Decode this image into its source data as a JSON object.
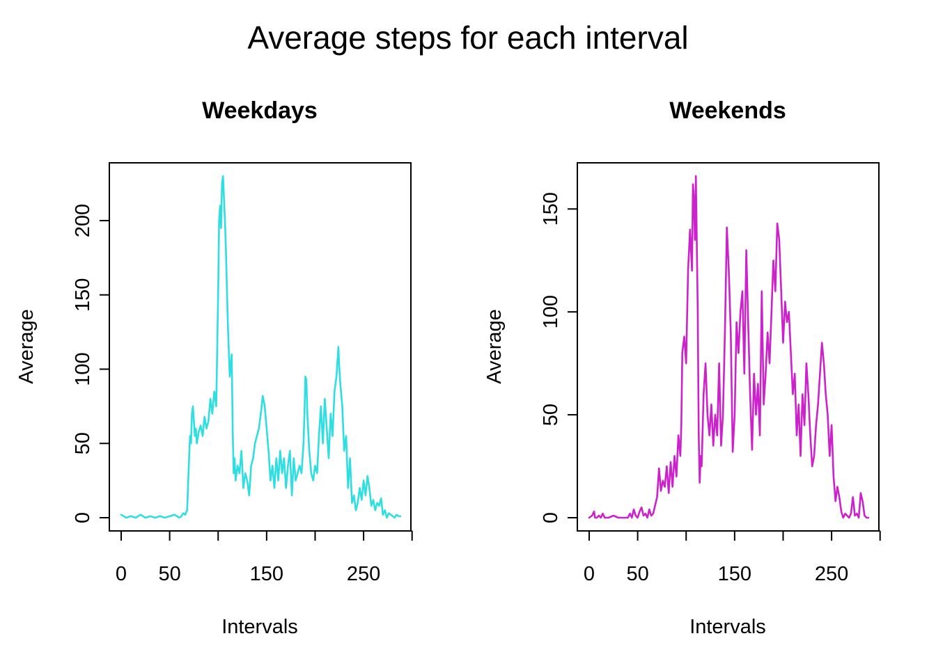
{
  "title": "Average steps for each interval",
  "chart_data": [
    {
      "type": "line",
      "title": "Weekdays",
      "xlabel": "Intervals",
      "ylabel": "Average",
      "color": "#2EDEE0",
      "xlim": [
        0,
        288
      ],
      "ylim": [
        0,
        230
      ],
      "xticks": [
        0,
        50,
        100,
        150,
        200,
        250,
        300
      ],
      "xtick_labels": [
        "0",
        "50",
        "",
        "150",
        "",
        "250",
        ""
      ],
      "yticks": [
        0,
        50,
        100,
        150,
        200
      ],
      "ytick_labels": [
        "0",
        "50",
        "100",
        "150",
        "200"
      ],
      "series": [
        {
          "x": [
            0,
            5,
            10,
            15,
            20,
            25,
            30,
            35,
            40,
            45,
            50,
            55,
            60,
            62,
            64,
            66,
            68,
            70,
            71,
            72,
            73,
            74,
            75,
            76,
            77,
            78,
            80,
            82,
            84,
            86,
            88,
            90,
            92,
            94,
            96,
            98,
            100,
            101,
            102,
            103,
            104,
            105,
            106,
            107,
            108,
            110,
            112,
            114,
            115,
            116,
            117,
            118,
            120,
            122,
            124,
            126,
            128,
            130,
            132,
            134,
            136,
            138,
            140,
            142,
            144,
            146,
            148,
            150,
            152,
            154,
            156,
            158,
            160,
            162,
            164,
            166,
            168,
            170,
            172,
            174,
            176,
            178,
            180,
            182,
            184,
            186,
            188,
            189,
            190,
            191,
            192,
            194,
            196,
            198,
            200,
            202,
            204,
            206,
            208,
            210,
            212,
            214,
            216,
            218,
            220,
            222,
            223,
            224,
            225,
            226,
            228,
            230,
            232,
            234,
            236,
            238,
            240,
            242,
            244,
            246,
            248,
            250,
            252,
            254,
            256,
            258,
            260,
            262,
            264,
            266,
            268,
            270,
            272,
            274,
            276,
            278,
            280,
            282,
            284,
            286,
            288
          ],
          "y": [
            2,
            0,
            1,
            0,
            2,
            0,
            1,
            0,
            1,
            0,
            1,
            2,
            0,
            1,
            3,
            2,
            5,
            40,
            55,
            50,
            70,
            75,
            65,
            55,
            60,
            50,
            58,
            62,
            55,
            68,
            60,
            65,
            80,
            70,
            85,
            75,
            150,
            200,
            210,
            195,
            225,
            230,
            215,
            200,
            180,
            130,
            95,
            110,
            60,
            30,
            40,
            25,
            35,
            30,
            45,
            20,
            30,
            25,
            15,
            35,
            40,
            50,
            55,
            60,
            70,
            82,
            75,
            60,
            45,
            25,
            35,
            20,
            40,
            25,
            45,
            30,
            40,
            20,
            35,
            45,
            15,
            40,
            25,
            30,
            35,
            30,
            50,
            70,
            95,
            93,
            70,
            45,
            30,
            25,
            35,
            30,
            55,
            75,
            50,
            80,
            60,
            40,
            70,
            55,
            85,
            95,
            105,
            115,
            100,
            90,
            75,
            45,
            55,
            20,
            40,
            10,
            15,
            5,
            10,
            20,
            12,
            25,
            15,
            28,
            20,
            8,
            12,
            5,
            10,
            8,
            13,
            2,
            5,
            0,
            3,
            2,
            1,
            0,
            2,
            1,
            1
          ]
        }
      ]
    },
    {
      "type": "line",
      "title": "Weekends",
      "xlabel": "Intervals",
      "ylabel": "Average",
      "color": "#CC22CC",
      "xlim": [
        0,
        288
      ],
      "ylim": [
        0,
        166
      ],
      "xticks": [
        0,
        50,
        100,
        150,
        200,
        250,
        300
      ],
      "xtick_labels": [
        "0",
        "50",
        "",
        "150",
        "",
        "250",
        ""
      ],
      "yticks": [
        0,
        50,
        100,
        150
      ],
      "ytick_labels": [
        "0",
        "50",
        "100",
        "150"
      ],
      "series": [
        {
          "x": [
            0,
            3,
            5,
            6,
            8,
            10,
            12,
            14,
            16,
            20,
            25,
            30,
            35,
            40,
            42,
            44,
            46,
            48,
            50,
            52,
            54,
            56,
            58,
            60,
            62,
            64,
            66,
            68,
            70,
            72,
            74,
            76,
            78,
            80,
            82,
            84,
            86,
            88,
            90,
            92,
            94,
            95,
            96,
            98,
            100,
            102,
            104,
            106,
            107,
            108,
            109,
            110,
            112,
            113,
            114,
            115,
            116,
            118,
            120,
            122,
            124,
            126,
            128,
            130,
            132,
            134,
            136,
            138,
            140,
            142,
            144,
            146,
            148,
            150,
            152,
            154,
            156,
            158,
            160,
            162,
            164,
            166,
            168,
            170,
            172,
            174,
            176,
            178,
            180,
            182,
            184,
            186,
            188,
            190,
            192,
            194,
            196,
            198,
            200,
            202,
            204,
            206,
            208,
            210,
            212,
            214,
            216,
            218,
            220,
            222,
            224,
            226,
            228,
            230,
            232,
            234,
            236,
            238,
            240,
            242,
            244,
            246,
            248,
            250,
            252,
            254,
            256,
            258,
            260,
            262,
            264,
            266,
            268,
            270,
            272,
            274,
            276,
            278,
            280,
            282,
            284,
            286,
            288
          ],
          "y": [
            0,
            1,
            3,
            0,
            0,
            1,
            0,
            2,
            0,
            0,
            1,
            0,
            0,
            0,
            2,
            0,
            4,
            1,
            0,
            3,
            5,
            1,
            2,
            0,
            4,
            1,
            2,
            6,
            10,
            24,
            13,
            18,
            15,
            25,
            12,
            27,
            15,
            30,
            20,
            40,
            30,
            45,
            80,
            88,
            75,
            120,
            140,
            120,
            162,
            155,
            135,
            166,
            100,
            40,
            17,
            30,
            25,
            60,
            75,
            50,
            40,
            55,
            35,
            50,
            40,
            75,
            35,
            50,
            90,
            141,
            120,
            90,
            32,
            50,
            95,
            80,
            100,
            110,
            70,
            130,
            95,
            60,
            33,
            70,
            50,
            65,
            40,
            110,
            55,
            70,
            90,
            75,
            100,
            125,
            110,
            143,
            135,
            110,
            85,
            105,
            95,
            100,
            80,
            60,
            70,
            40,
            55,
            30,
            60,
            45,
            75,
            60,
            40,
            25,
            30,
            45,
            55,
            70,
            85,
            75,
            60,
            50,
            30,
            45,
            20,
            8,
            15,
            10,
            3,
            0,
            2,
            1,
            0,
            2,
            10,
            1,
            2,
            0,
            12,
            8,
            1,
            0,
            0
          ]
        }
      ]
    }
  ]
}
